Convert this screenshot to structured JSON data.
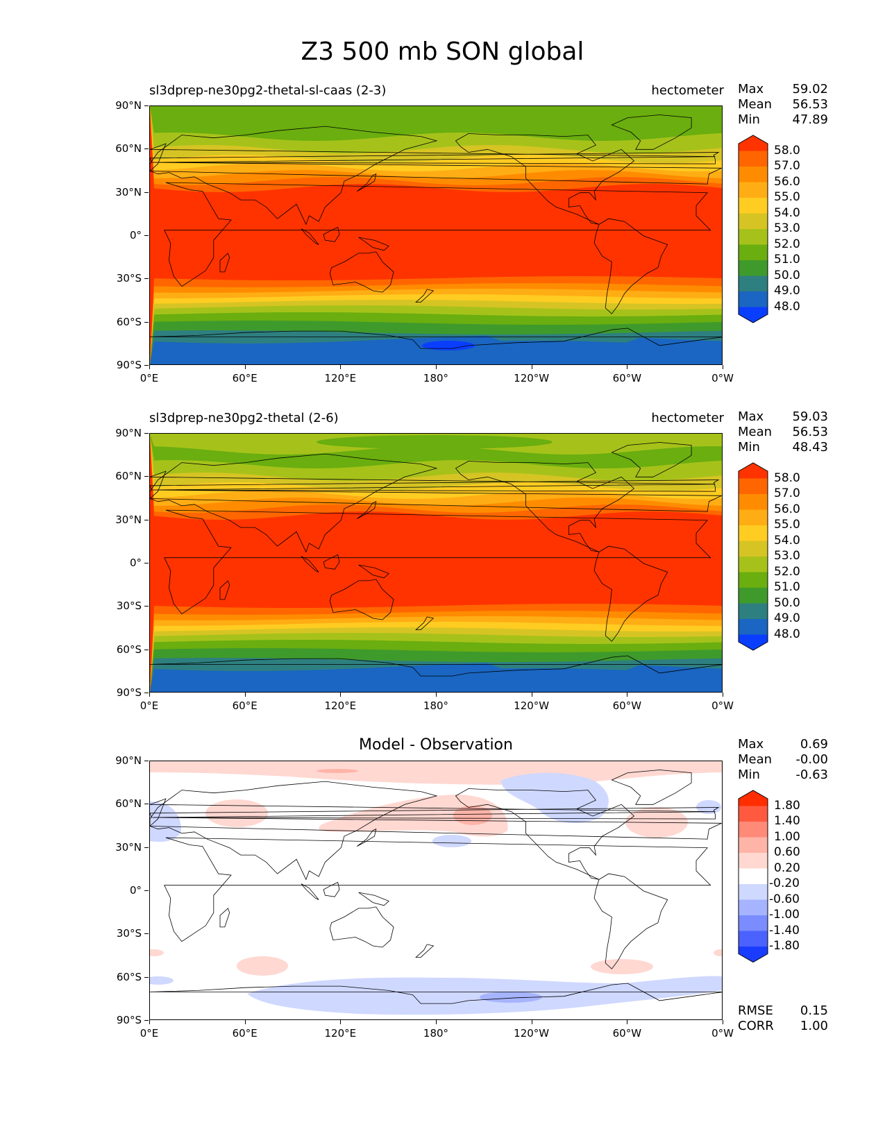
{
  "figure_title": "Z3 500 mb SON global",
  "x_ticks": [
    "0°E",
    "60°E",
    "120°E",
    "180°",
    "120°W",
    "60°W",
    "0°W"
  ],
  "y_ticks": [
    "90°N",
    "60°N",
    "30°N",
    "0°",
    "30°S",
    "60°S",
    "90°S"
  ],
  "panels": [
    {
      "title": "sl3dprep-ne30pg2-thetal-sl-caas (2-3)",
      "units": "hectometer",
      "stats": {
        "max_label": "Max",
        "max": "59.02",
        "mean_label": "Mean",
        "mean": "56.53",
        "min_label": "Min",
        "min": "47.89"
      },
      "colorbar_labels": [
        "58.0",
        "57.0",
        "56.0",
        "55.0",
        "54.0",
        "53.0",
        "52.0",
        "51.0",
        "50.0",
        "49.0",
        "48.0"
      ],
      "colors": [
        "#ff3300",
        "#ff6600",
        "#ff8c00",
        "#ffad14",
        "#ffcc22",
        "#d6c424",
        "#a6c21a",
        "#6aae0f",
        "#3f9a2c",
        "#2e7f80",
        "#1a66c2",
        "#0a3eff"
      ]
    },
    {
      "title": "sl3dprep-ne30pg2-thetal (2-6)",
      "units": "hectometer",
      "stats": {
        "max_label": "Max",
        "max": "59.03",
        "mean_label": "Mean",
        "mean": "56.53",
        "min_label": "Min",
        "min": "48.43"
      },
      "colorbar_labels": [
        "58.0",
        "57.0",
        "56.0",
        "55.0",
        "54.0",
        "53.0",
        "52.0",
        "51.0",
        "50.0",
        "49.0",
        "48.0"
      ],
      "colors": [
        "#ff3300",
        "#ff6600",
        "#ff8c00",
        "#ffad14",
        "#ffcc22",
        "#d6c424",
        "#a6c21a",
        "#6aae0f",
        "#3f9a2c",
        "#2e7f80",
        "#1a66c2",
        "#0a3eff"
      ]
    },
    {
      "title": "Model - Observation",
      "stats": {
        "max_label": "Max",
        "max": "0.69",
        "mean_label": "Mean",
        "mean": "-0.00",
        "min_label": "Min",
        "min": "-0.63"
      },
      "colorbar_labels": [
        "1.80",
        "1.40",
        "1.00",
        "0.60",
        "0.20",
        "-0.20",
        "-0.60",
        "-1.00",
        "-1.40",
        "-1.80"
      ],
      "colors": [
        "#ff2d00",
        "#ff5a40",
        "#ff8a78",
        "#ffb4a8",
        "#ffd8d2",
        "#ffffff",
        "#cfd8ff",
        "#a6b4ff",
        "#7a8cff",
        "#4b62ff",
        "#1a3cff"
      ],
      "metrics": {
        "rmse_label": "RMSE",
        "rmse": "0.15",
        "corr_label": "CORR",
        "corr": "1.00"
      }
    }
  ]
}
